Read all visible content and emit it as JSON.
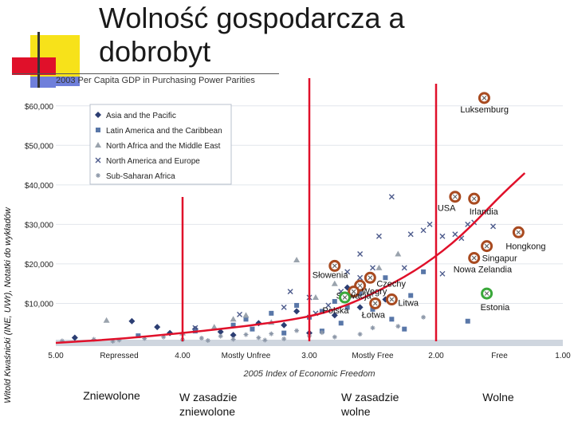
{
  "slide": {
    "title_line1": "Wolność gospodarcza a",
    "title_line2": "dobrobyt",
    "side_note": "Witold Kwaśnicki (INE, UWr), Notatki do wykładów",
    "colors": {
      "accent_yellow": "#f7e21a",
      "accent_red": "#e0102a",
      "accent_blue": "#6f7fdb"
    },
    "zone_labels": [
      {
        "id": "zniewolone",
        "lines": [
          "Zniewolone"
        ]
      },
      {
        "id": "w-zasadzie-zniewolone",
        "lines": [
          "W zasadzie",
          "zniewolone"
        ]
      },
      {
        "id": "w-zasadzie-wolne",
        "lines": [
          "W zasadzie",
          "wolne"
        ]
      },
      {
        "id": "wolne",
        "lines": [
          "Wolne"
        ]
      }
    ]
  },
  "chart_data": {
    "type": "scatter",
    "title": "2003 Per Capita GDP in Purchasing Power Parities",
    "xlabel": "2005 Index of Economic Freedom",
    "xlim": [
      5.0,
      1.0
    ],
    "x_reversed": true,
    "ylim": [
      0,
      65000
    ],
    "x_ticks": [
      "5.00",
      "4.00",
      "3.00",
      "2.00",
      "1.00"
    ],
    "x_category_labels": [
      "Repressed",
      "Mostly Unfree",
      "Mostly Free",
      "Free"
    ],
    "y_ticks": [
      "$10,000",
      "$20,000",
      "$30,000",
      "$40,000",
      "$50,000",
      "$60,000"
    ],
    "grid": true,
    "legend_position": "top-left",
    "series": [
      {
        "name": "Asia and the Pacific",
        "marker": "diamond",
        "color": "#2c3e73",
        "points": [
          [
            4.85,
            1300
          ],
          [
            4.4,
            5500
          ],
          [
            4.1,
            2500
          ],
          [
            3.9,
            3500
          ],
          [
            3.7,
            2800
          ],
          [
            3.4,
            5000
          ],
          [
            3.2,
            4500
          ],
          [
            3.0,
            2500
          ],
          [
            2.8,
            7000
          ],
          [
            2.6,
            9000
          ],
          [
            2.4,
            11000
          ],
          [
            3.6,
            2000
          ],
          [
            4.2,
            4000
          ],
          [
            3.1,
            8000
          ],
          [
            2.7,
            14000
          ]
        ]
      },
      {
        "name": "Latin America and the Caribbean",
        "marker": "square",
        "color": "#5977a8",
        "points": [
          [
            4.35,
            1800
          ],
          [
            3.9,
            3000
          ],
          [
            3.6,
            4500
          ],
          [
            3.5,
            6000
          ],
          [
            3.3,
            7500
          ],
          [
            3.1,
            9500
          ],
          [
            3.0,
            6500
          ],
          [
            2.9,
            8000
          ],
          [
            2.8,
            10500
          ],
          [
            2.7,
            9000
          ],
          [
            2.6,
            12500
          ],
          [
            2.5,
            8500
          ],
          [
            2.35,
            6000
          ],
          [
            2.2,
            12000
          ],
          [
            2.9,
            3000
          ],
          [
            3.2,
            2500
          ],
          [
            2.75,
            5000
          ],
          [
            2.4,
            16500
          ],
          [
            2.1,
            18000
          ],
          [
            1.75,
            5500
          ],
          [
            3.45,
            3500
          ],
          [
            2.25,
            3500
          ]
        ]
      },
      {
        "name": "North Africa and the Middle East",
        "marker": "triangle",
        "color": "#9aa3ad",
        "points": [
          [
            4.6,
            5700
          ],
          [
            4.0,
            2500
          ],
          [
            3.75,
            4000
          ],
          [
            3.6,
            6000
          ],
          [
            3.5,
            7000
          ],
          [
            3.3,
            5200
          ],
          [
            3.1,
            21000
          ],
          [
            2.95,
            11500
          ],
          [
            2.8,
            15000
          ],
          [
            2.45,
            19000
          ],
          [
            2.3,
            22500
          ],
          [
            2.65,
            12000
          ]
        ]
      },
      {
        "name": "North America and Europe",
        "marker": "x",
        "color": "#4d5b8c",
        "points": [
          [
            3.9,
            3800
          ],
          [
            3.55,
            7200
          ],
          [
            3.2,
            9000
          ],
          [
            3.0,
            11500
          ],
          [
            2.85,
            9500
          ],
          [
            2.75,
            13000
          ],
          [
            2.6,
            16500
          ],
          [
            2.5,
            19000
          ],
          [
            2.45,
            27000
          ],
          [
            2.35,
            37000
          ],
          [
            2.2,
            27500
          ],
          [
            2.1,
            28500
          ],
          [
            2.05,
            30000
          ],
          [
            1.95,
            27000
          ],
          [
            1.85,
            27500
          ],
          [
            1.75,
            30000
          ],
          [
            1.7,
            30500
          ],
          [
            1.55,
            29500
          ],
          [
            1.95,
            17500
          ],
          [
            2.25,
            19000
          ],
          [
            2.7,
            18000
          ],
          [
            2.95,
            7500
          ],
          [
            3.15,
            13000
          ],
          [
            2.6,
            22500
          ],
          [
            1.8,
            26500
          ]
        ]
      },
      {
        "name": "Sub-Saharan Africa",
        "marker": "star",
        "color": "#8c97a8",
        "points": [
          [
            4.95,
            500
          ],
          [
            4.7,
            900
          ],
          [
            4.5,
            700
          ],
          [
            4.3,
            1100
          ],
          [
            4.15,
            1500
          ],
          [
            4.0,
            800
          ],
          [
            3.85,
            1200
          ],
          [
            3.7,
            1700
          ],
          [
            3.6,
            900
          ],
          [
            3.5,
            2100
          ],
          [
            3.4,
            1300
          ],
          [
            3.3,
            2300
          ],
          [
            3.2,
            1000
          ],
          [
            3.1,
            3100
          ],
          [
            3.0,
            1800
          ],
          [
            2.9,
            2600
          ],
          [
            2.8,
            1500
          ],
          [
            2.6,
            2200
          ],
          [
            2.5,
            3800
          ],
          [
            2.3,
            4200
          ],
          [
            2.1,
            6500
          ],
          [
            3.8,
            600
          ],
          [
            3.35,
            700
          ],
          [
            4.55,
            400
          ]
        ]
      }
    ],
    "highlights": [
      {
        "label": "Luksemburg",
        "x": 1.62,
        "y": 62000,
        "color": "#a84a20"
      },
      {
        "label": "USA",
        "x": 1.85,
        "y": 37000,
        "color": "#a84a20"
      },
      {
        "label": "Irlandia",
        "x": 1.7,
        "y": 36500,
        "color": "#a84a20"
      },
      {
        "label": "Hongkong",
        "x": 1.35,
        "y": 28000,
        "color": "#a84a20"
      },
      {
        "label": "Singapur",
        "x": 1.6,
        "y": 24500,
        "color": "#a84a20"
      },
      {
        "label": "Nowa Zelandia",
        "x": 1.7,
        "y": 21500,
        "color": "#a84a20"
      },
      {
        "label": "Słowenia",
        "x": 2.8,
        "y": 19500,
        "color": "#a84a20"
      },
      {
        "label": "Czechy",
        "x": 2.52,
        "y": 16500,
        "color": "#a84a20"
      },
      {
        "label": "Węgry",
        "x": 2.6,
        "y": 14500,
        "color": "#a84a20"
      },
      {
        "label": "Słowacja",
        "x": 2.65,
        "y": 13000,
        "color": "#a84a20"
      },
      {
        "label": "Litwa",
        "x": 2.35,
        "y": 11000,
        "color": "#a84a20"
      },
      {
        "label": "Polska",
        "x": 2.72,
        "y": 11500,
        "color": "#3aa83a"
      },
      {
        "label": "Łotwa",
        "x": 2.48,
        "y": 10000,
        "color": "#a84a20"
      },
      {
        "label": "Estonia",
        "x": 1.6,
        "y": 12500,
        "color": "#3aa83a"
      }
    ],
    "freedom_boundaries": [
      4.0,
      3.0,
      2.0
    ],
    "trend_curve": [
      [
        5.0,
        0
      ],
      [
        4.5,
        1000
      ],
      [
        4.0,
        2500
      ],
      [
        3.5,
        4200
      ],
      [
        3.0,
        6500
      ],
      [
        2.7,
        9500
      ],
      [
        2.4,
        14000
      ],
      [
        2.1,
        19500
      ],
      [
        1.8,
        27000
      ],
      [
        1.5,
        37000
      ],
      [
        1.3,
        43000
      ]
    ]
  }
}
